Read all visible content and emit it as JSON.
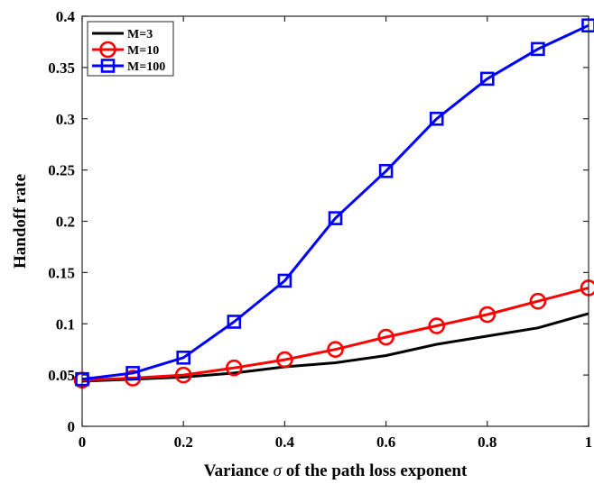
{
  "chart_data": {
    "type": "line",
    "xlabel_parts": [
      "Variance ",
      "σ",
      " of the path loss exponent"
    ],
    "ylabel": "Handoff rate",
    "xlim": [
      0,
      1
    ],
    "ylim": [
      0,
      0.4
    ],
    "xticks": [
      0,
      0.2,
      0.4,
      0.6,
      0.8,
      1
    ],
    "xtick_labels": [
      "0",
      "0.2",
      "0.4",
      "0.6",
      "0.8",
      "1"
    ],
    "yticks": [
      0,
      0.05,
      0.1,
      0.15,
      0.2,
      0.25,
      0.3,
      0.35,
      0.4
    ],
    "ytick_labels": [
      "0",
      "0.05",
      "0.1",
      "0.15",
      "0.2",
      "0.25",
      "0.3",
      "0.35",
      "0.4"
    ],
    "grid": false,
    "legend_position": "top-left",
    "x": [
      0,
      0.1,
      0.2,
      0.3,
      0.4,
      0.5,
      0.6,
      0.7,
      0.8,
      0.9,
      1.0
    ],
    "series": [
      {
        "name": "M=3",
        "color": "#000000",
        "marker": "none",
        "values": [
          0.044,
          0.046,
          0.048,
          0.052,
          0.058,
          0.062,
          0.069,
          0.08,
          0.088,
          0.096,
          0.11
        ]
      },
      {
        "name": "M=10",
        "color": "#ff0000",
        "marker": "circle",
        "values": [
          0.045,
          0.047,
          0.05,
          0.057,
          0.065,
          0.075,
          0.087,
          0.098,
          0.109,
          0.122,
          0.135
        ]
      },
      {
        "name": "M=100",
        "color": "#0000ff",
        "marker": "square",
        "values": [
          0.046,
          0.052,
          0.067,
          0.102,
          0.142,
          0.203,
          0.249,
          0.3,
          0.339,
          0.368,
          0.391
        ]
      }
    ]
  }
}
